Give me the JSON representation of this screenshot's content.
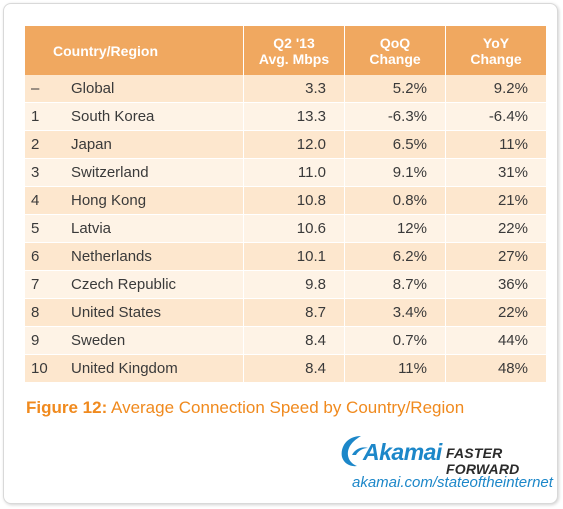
{
  "chart_data": {
    "type": "table",
    "columns": [
      "Country/Region",
      "Q2 '13 Avg. Mbps",
      "QoQ Change",
      "YoY Change"
    ],
    "header": {
      "rank": "",
      "name": "Country/Region",
      "avg": [
        "Q2 '13",
        "Avg. Mbps"
      ],
      "qoq": [
        "QoQ",
        "Change"
      ],
      "yoy": [
        "YoY",
        "Change"
      ]
    },
    "rows": [
      {
        "rank": "–",
        "name": "Global",
        "avg": "3.3",
        "qoq": "5.2%",
        "yoy": "9.2%"
      },
      {
        "rank": "1",
        "name": "South Korea",
        "avg": "13.3",
        "qoq": "-6.3%",
        "yoy": "-6.4%"
      },
      {
        "rank": "2",
        "name": "Japan",
        "avg": "12.0",
        "qoq": "6.5%",
        "yoy": "11%"
      },
      {
        "rank": "3",
        "name": "Switzerland",
        "avg": "11.0",
        "qoq": "9.1%",
        "yoy": "31%"
      },
      {
        "rank": "4",
        "name": "Hong Kong",
        "avg": "10.8",
        "qoq": "0.8%",
        "yoy": "21%"
      },
      {
        "rank": "5",
        "name": "Latvia",
        "avg": "10.6",
        "qoq": "12%",
        "yoy": "22%"
      },
      {
        "rank": "6",
        "name": "Netherlands",
        "avg": "10.1",
        "qoq": "6.2%",
        "yoy": "27%"
      },
      {
        "rank": "7",
        "name": "Czech Republic",
        "avg": "9.8",
        "qoq": "8.7%",
        "yoy": "36%"
      },
      {
        "rank": "8",
        "name": "United States",
        "avg": "8.7",
        "qoq": "3.4%",
        "yoy": "22%"
      },
      {
        "rank": "9",
        "name": "Sweden",
        "avg": "8.4",
        "qoq": "0.7%",
        "yoy": "44%"
      },
      {
        "rank": "10",
        "name": "United Kingdom",
        "avg": "8.4",
        "qoq": "11%",
        "yoy": "48%"
      }
    ]
  },
  "caption": {
    "label": "Figure 12:",
    "text": " Average Connection Speed by Country/Region"
  },
  "brand": {
    "logo_icon": "akamai-wave-icon",
    "name": "Akamai",
    "tagline": "FASTER FORWARD",
    "url": "akamai.com/stateoftheinternet"
  },
  "colors": {
    "header_bg": "#f0a860",
    "row_odd": "#fde7ce",
    "row_even": "#fef3e6",
    "caption": "#f08a1e",
    "brand_blue": "#1c87c9"
  }
}
